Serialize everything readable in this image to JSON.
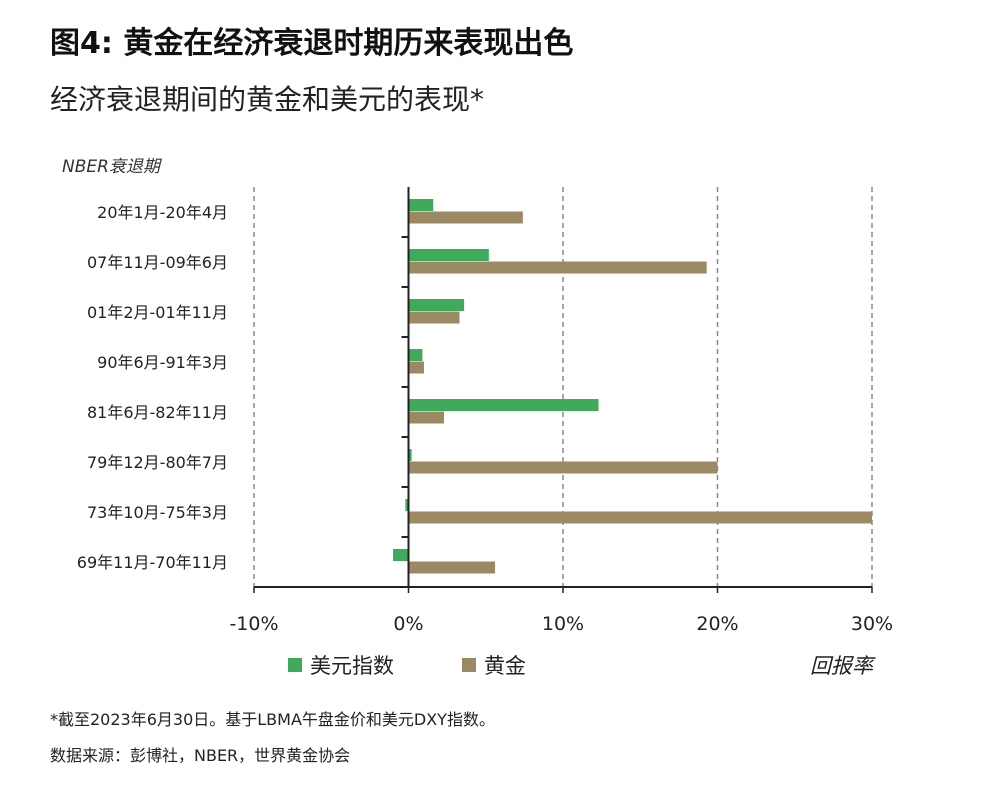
{
  "title": "图4: 黄金在经济衰退时期历来表现出色",
  "subtitle": "经济衰退期间的黄金和美元的表现*",
  "footnote": "*截至2023年6月30日。基于LBMA午盘金价和美元DXY指数。",
  "source": "数据来源：彭博社，NBER，世界黄金协会",
  "chart_data": {
    "type": "bar",
    "orientation": "horizontal",
    "ylabel": "NBER衰退期",
    "xlabel": "回报率",
    "categories": [
      "20年1月-20年4月",
      "07年11月-09年6月",
      "01年2月-01年11月",
      "90年6月-91年3月",
      "81年6月-82年11月",
      "79年12月-80年7月",
      "73年10月-75年3月",
      "69年11月-70年11月"
    ],
    "series": [
      {
        "name": "美元指数",
        "color": "#3fa95c",
        "values": [
          1.6,
          5.2,
          3.6,
          0.9,
          12.3,
          0.2,
          -0.2,
          -1.0
        ]
      },
      {
        "name": "黄金",
        "color": "#9b8963",
        "values": [
          7.4,
          19.3,
          3.3,
          1.0,
          2.3,
          20.0,
          30.0,
          5.6
        ]
      }
    ],
    "xlim": [
      -10,
      30
    ],
    "xticks": [
      -10,
      0,
      10,
      20,
      30
    ],
    "xtick_labels": [
      "-10%",
      "0%",
      "10%",
      "20%",
      "30%"
    ],
    "grid": "vertical dashed",
    "legend": "bottom"
  }
}
